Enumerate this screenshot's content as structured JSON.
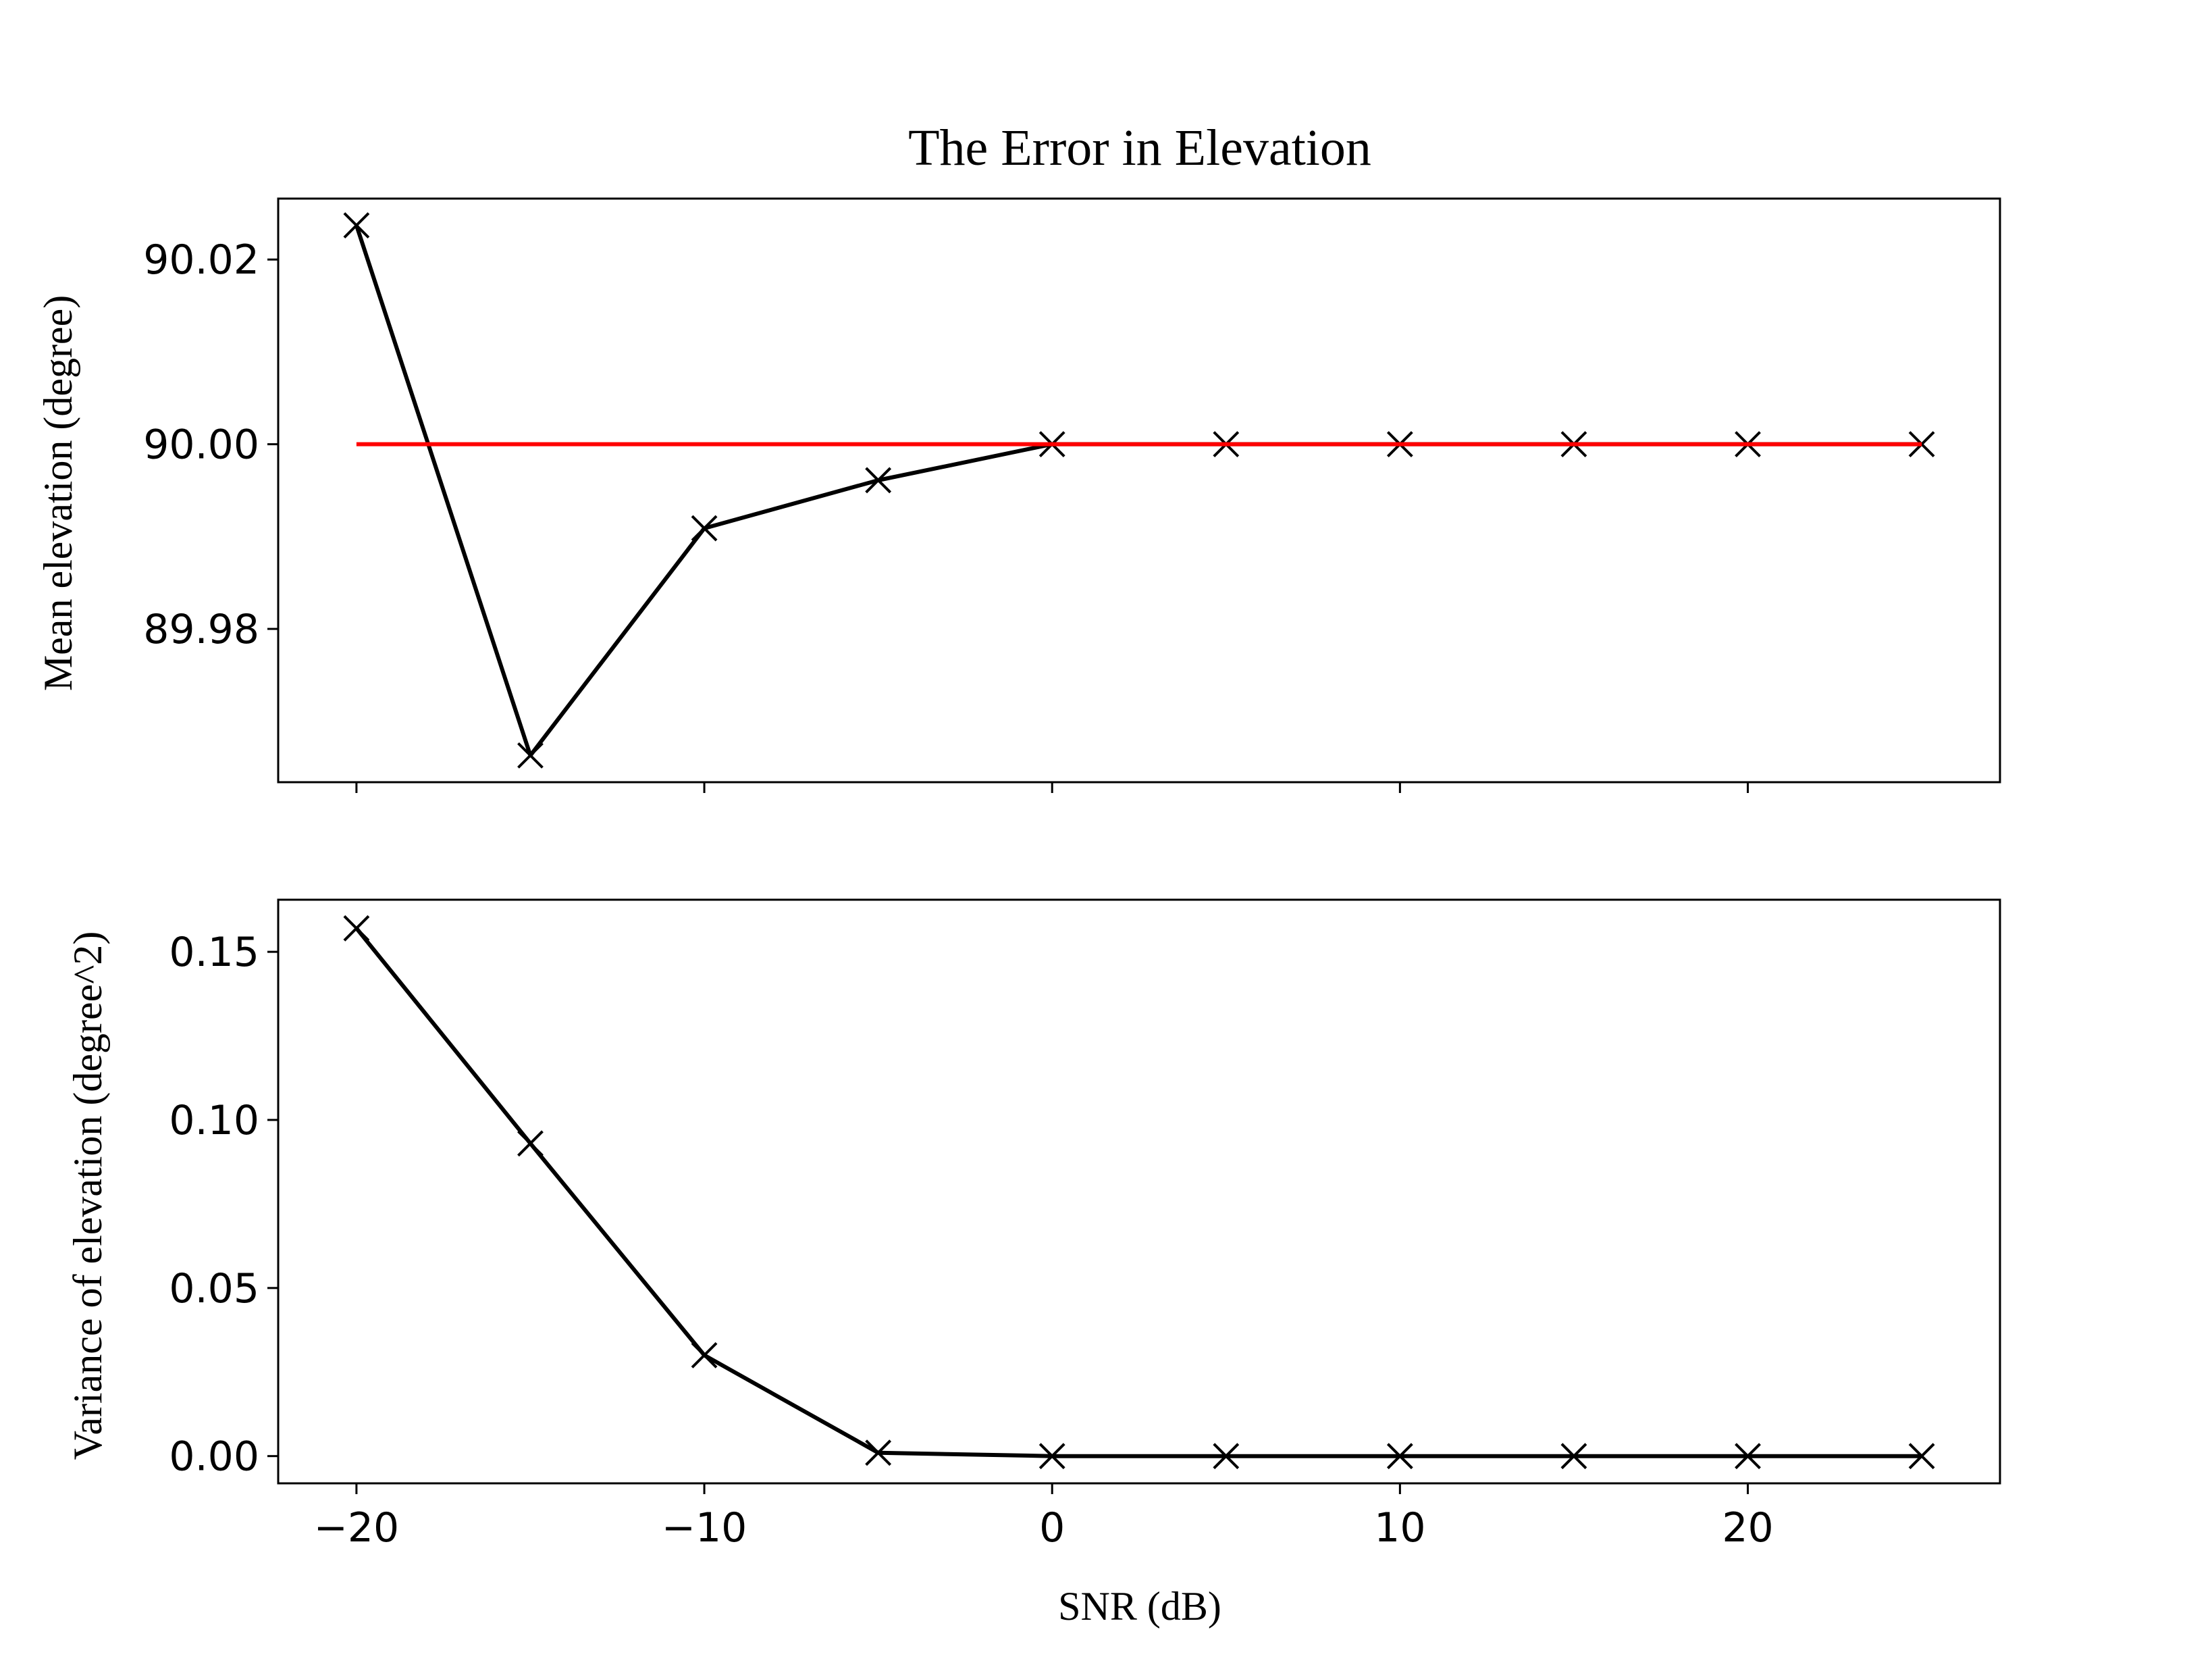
{
  "chart_data": {
    "type": "line",
    "title": "The Error in Elevation",
    "xlabel": "SNR (dB)",
    "x": [
      -20,
      -15,
      -10,
      -5,
      0,
      5,
      10,
      15,
      20,
      25
    ],
    "xlim": [
      -22.25,
      27.25
    ],
    "xticks": [
      -20,
      -10,
      0,
      10,
      20
    ],
    "xtick_labels": [
      "−20",
      "−10",
      "0",
      "10",
      "20"
    ],
    "grid": false,
    "legend": "none",
    "panels": [
      {
        "ylabel": "Mean elevation (degree)",
        "ylim": [
          89.9634,
          90.0266
        ],
        "yticks": [
          89.98,
          90.0,
          90.02
        ],
        "ytick_labels": [
          "89.98",
          "90.00",
          "90.02"
        ],
        "show_xtick_labels": false,
        "series": [
          {
            "values": [
              90.0237,
              89.9663,
              89.9909,
              89.9961,
              90.0,
              90.0,
              90.0,
              90.0,
              90.0,
              90.0
            ],
            "color": "#000000",
            "marker": "x"
          },
          {
            "values": [
              90.0,
              90.0,
              90.0,
              90.0,
              90.0,
              90.0,
              90.0,
              90.0,
              90.0,
              90.0
            ],
            "color": "#ff0000",
            "marker": "none"
          }
        ]
      },
      {
        "ylabel": "Variance of elevation (degree^2)",
        "ylim": [
          -0.0081,
          0.1655
        ],
        "yticks": [
          0.0,
          0.05,
          0.1,
          0.15
        ],
        "ytick_labels": [
          "0.00",
          "0.05",
          "0.10",
          "0.15"
        ],
        "show_xtick_labels": true,
        "series": [
          {
            "values": [
              0.157,
              0.093,
              0.03,
              0.001,
              0.0,
              0.0,
              0.0,
              0.0,
              0.0,
              0.0
            ],
            "color": "#000000",
            "marker": "x"
          }
        ]
      }
    ]
  }
}
